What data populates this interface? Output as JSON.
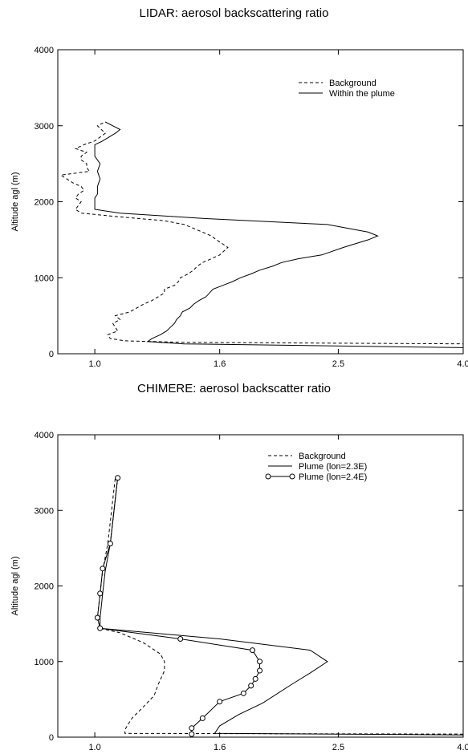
{
  "chart_data": [
    {
      "type": "line",
      "title": "LIDAR: aerosol backscattering ratio",
      "xlabel": "",
      "ylabel": "Altitude agl (m)",
      "x_scale": "log",
      "xlim": [
        0.87,
        4.0
      ],
      "ylim": [
        0,
        4000
      ],
      "xticks": [
        1.0,
        1.6,
        2.5,
        4.0
      ],
      "xtick_labels": [
        "1.0",
        "1.6",
        "2.5",
        "4.0"
      ],
      "yticks": [
        0,
        1000,
        2000,
        3000,
        4000
      ],
      "ytick_labels": [
        "0",
        "1000",
        "2000",
        "3000",
        "4000"
      ],
      "legend_position": "top-right",
      "series": [
        {
          "name": "Background",
          "style": "dashed",
          "points": [
            [
              4.0,
              100
            ],
            [
              4.0,
              130
            ],
            [
              1.4,
              150
            ],
            [
              1.12,
              170
            ],
            [
              1.06,
              200
            ],
            [
              1.05,
              250
            ],
            [
              1.09,
              300
            ],
            [
              1.07,
              400
            ],
            [
              1.1,
              450
            ],
            [
              1.08,
              500
            ],
            [
              1.14,
              550
            ],
            [
              1.17,
              600
            ],
            [
              1.2,
              650
            ],
            [
              1.24,
              700
            ],
            [
              1.27,
              750
            ],
            [
              1.3,
              800
            ],
            [
              1.3,
              850
            ],
            [
              1.35,
              900
            ],
            [
              1.37,
              950
            ],
            [
              1.38,
              1000
            ],
            [
              1.42,
              1050
            ],
            [
              1.45,
              1100
            ],
            [
              1.47,
              1150
            ],
            [
              1.5,
              1200
            ],
            [
              1.55,
              1250
            ],
            [
              1.6,
              1300
            ],
            [
              1.65,
              1400
            ],
            [
              1.58,
              1500
            ],
            [
              1.55,
              1550
            ],
            [
              1.5,
              1600
            ],
            [
              1.45,
              1650
            ],
            [
              1.4,
              1700
            ],
            [
              1.3,
              1750
            ],
            [
              1.1,
              1800
            ],
            [
              0.95,
              1850
            ],
            [
              0.93,
              1900
            ],
            [
              0.95,
              2000
            ],
            [
              0.93,
              2050
            ],
            [
              0.94,
              2100
            ],
            [
              0.96,
              2150
            ],
            [
              0.95,
              2200
            ],
            [
              0.92,
              2250
            ],
            [
              0.88,
              2350
            ],
            [
              0.98,
              2400
            ],
            [
              0.97,
              2450
            ],
            [
              0.97,
              2500
            ],
            [
              0.95,
              2550
            ],
            [
              0.95,
              2600
            ],
            [
              0.97,
              2650
            ],
            [
              0.93,
              2700
            ],
            [
              0.96,
              2750
            ],
            [
              1.0,
              2800
            ],
            [
              1.04,
              2900
            ],
            [
              1.01,
              3000
            ],
            [
              1.04,
              3050
            ]
          ]
        },
        {
          "name": "Within the plume",
          "style": "solid",
          "points": [
            [
              4.0,
              80
            ],
            [
              1.4,
              130
            ],
            [
              1.22,
              160
            ],
            [
              1.24,
              200
            ],
            [
              1.28,
              250
            ],
            [
              1.31,
              300
            ],
            [
              1.33,
              350
            ],
            [
              1.35,
              400
            ],
            [
              1.36,
              450
            ],
            [
              1.38,
              500
            ],
            [
              1.39,
              550
            ],
            [
              1.43,
              600
            ],
            [
              1.45,
              650
            ],
            [
              1.48,
              700
            ],
            [
              1.52,
              750
            ],
            [
              1.54,
              800
            ],
            [
              1.56,
              850
            ],
            [
              1.62,
              900
            ],
            [
              1.68,
              950
            ],
            [
              1.73,
              1000
            ],
            [
              1.8,
              1050
            ],
            [
              1.86,
              1100
            ],
            [
              1.95,
              1150
            ],
            [
              2.02,
              1200
            ],
            [
              2.15,
              1250
            ],
            [
              2.35,
              1300
            ],
            [
              2.55,
              1400
            ],
            [
              2.8,
              1500
            ],
            [
              2.9,
              1550
            ],
            [
              2.8,
              1600
            ],
            [
              2.4,
              1700
            ],
            [
              1.5,
              1780
            ],
            [
              1.1,
              1850
            ],
            [
              1.0,
              1900
            ],
            [
              1.0,
              2000
            ],
            [
              1.0,
              2050
            ],
            [
              1.01,
              2100
            ],
            [
              1.01,
              2200
            ],
            [
              1.02,
              2300
            ],
            [
              1.01,
              2400
            ],
            [
              1.02,
              2500
            ],
            [
              1.0,
              2600
            ],
            [
              1.0,
              2750
            ],
            [
              1.03,
              2800
            ],
            [
              1.08,
              2900
            ],
            [
              1.1,
              2950
            ],
            [
              1.07,
              3000
            ],
            [
              1.04,
              3050
            ]
          ]
        }
      ]
    },
    {
      "type": "line",
      "title": "CHIMERE: aerosol backscatter ratio",
      "xlabel": "",
      "ylabel": "Altitude agl (m)",
      "x_scale": "log",
      "xlim": [
        0.87,
        4.0
      ],
      "ylim": [
        0,
        4000
      ],
      "xticks": [
        1.0,
        1.6,
        2.5,
        4.0
      ],
      "xtick_labels": [
        "1.0",
        "1.6",
        "2.5",
        "4.0"
      ],
      "yticks": [
        0,
        1000,
        2000,
        3000,
        4000
      ],
      "ytick_labels": [
        "0",
        "1000",
        "2000",
        "3000",
        "4000"
      ],
      "legend_position": "top-right",
      "series": [
        {
          "name": "Background",
          "style": "dashed",
          "points": [
            [
              4.0,
              40
            ],
            [
              1.12,
              50
            ],
            [
              1.12,
              100
            ],
            [
              1.15,
              250
            ],
            [
              1.2,
              400
            ],
            [
              1.25,
              550
            ],
            [
              1.27,
              700
            ],
            [
              1.3,
              880
            ],
            [
              1.3,
              1000
            ],
            [
              1.28,
              1100
            ],
            [
              1.2,
              1250
            ],
            [
              1.1,
              1380
            ],
            [
              1.02,
              1440
            ],
            [
              1.01,
              1580
            ],
            [
              1.02,
              1900
            ],
            [
              1.03,
              2200
            ],
            [
              1.05,
              2560
            ],
            [
              1.08,
              3430
            ]
          ]
        },
        {
          "name": "Plume (lon=2.3E)",
          "style": "solid",
          "points": [
            [
              4.0,
              30
            ],
            [
              1.57,
              50
            ],
            [
              1.6,
              150
            ],
            [
              1.72,
              300
            ],
            [
              1.88,
              450
            ],
            [
              2.1,
              700
            ],
            [
              2.25,
              850
            ],
            [
              2.4,
              1000
            ],
            [
              2.25,
              1150
            ],
            [
              1.6,
              1300
            ],
            [
              1.02,
              1440
            ],
            [
              1.02,
              1580
            ],
            [
              1.03,
              1900
            ],
            [
              1.04,
              2200
            ],
            [
              1.06,
              2560
            ],
            [
              1.09,
              3430
            ]
          ]
        },
        {
          "name": "Plume (lon=2.4E)",
          "style": "solid-circle-markers",
          "points": [
            [
              1.44,
              40
            ],
            [
              1.44,
              120
            ],
            [
              1.5,
              250
            ],
            [
              1.6,
              470
            ],
            [
              1.75,
              580
            ],
            [
              1.8,
              680
            ],
            [
              1.83,
              770
            ],
            [
              1.86,
              880
            ],
            [
              1.86,
              1000
            ],
            [
              1.81,
              1150
            ],
            [
              1.38,
              1300
            ],
            [
              1.02,
              1440
            ],
            [
              1.01,
              1580
            ],
            [
              1.02,
              1900
            ],
            [
              1.03,
              2230
            ],
            [
              1.06,
              2560
            ],
            [
              1.09,
              3430
            ]
          ]
        }
      ]
    }
  ]
}
